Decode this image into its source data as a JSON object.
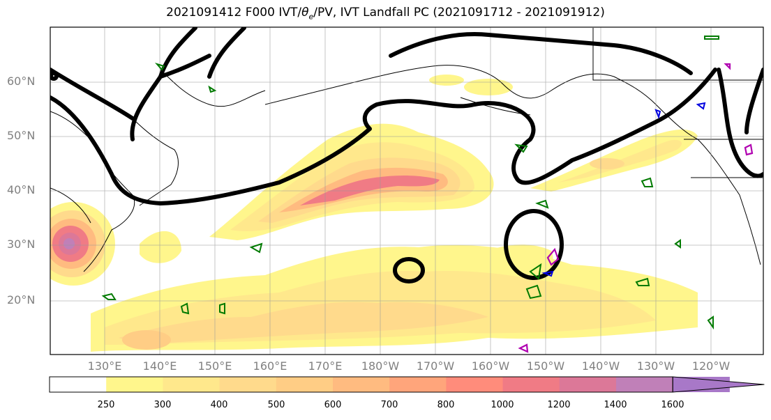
{
  "title": {
    "prefix": "2021091412 F000 IVT/",
    "theta": "θ",
    "theta_sub": "e",
    "suffix": "/PV, IVT Landfall PC (2021091712 - 2021091912)"
  },
  "lat_labels": [
    "60°N",
    "50°N",
    "40°N",
    "30°N",
    "20°N"
  ],
  "lon_labels": [
    "130°E",
    "140°E",
    "150°E",
    "160°E",
    "170°E",
    "180°W",
    "170°W",
    "160°W",
    "150°W",
    "140°W",
    "130°W",
    "120°W"
  ],
  "colorbar": {
    "ticks": [
      "250",
      "300",
      "400",
      "500",
      "600",
      "700",
      "800",
      "1000",
      "1200",
      "1400",
      "1600"
    ],
    "colors": [
      "#ffffff",
      "#fff68c",
      "#ffe88c",
      "#ffda8c",
      "#ffcd85",
      "#ffbb80",
      "#ffa57b",
      "#ff8c7b",
      "#f07b85",
      "#dc7898",
      "#c080b8",
      "#a878c8"
    ]
  }
}
